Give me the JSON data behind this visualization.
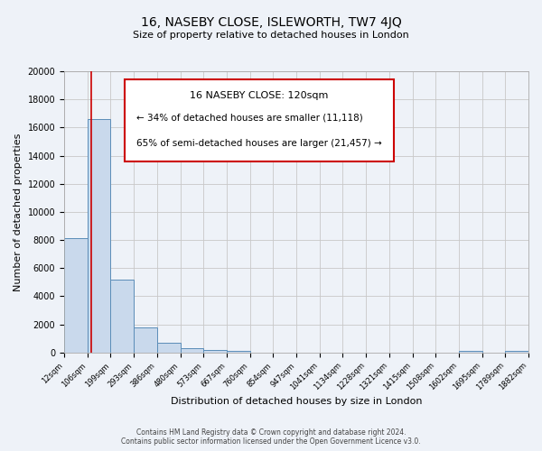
{
  "title": "16, NASEBY CLOSE, ISLEWORTH, TW7 4JQ",
  "subtitle": "Size of property relative to detached houses in London",
  "xlabel": "Distribution of detached houses by size in London",
  "ylabel": "Number of detached properties",
  "bar_edges": [
    12,
    106,
    199,
    293,
    386,
    480,
    573,
    667,
    760,
    854,
    947,
    1041,
    1134,
    1228,
    1321,
    1415,
    1508,
    1602,
    1695,
    1789,
    1882
  ],
  "bar_heights": [
    8100,
    16600,
    5200,
    1750,
    700,
    280,
    170,
    100,
    0,
    0,
    0,
    0,
    0,
    0,
    0,
    0,
    0,
    140,
    0,
    100
  ],
  "bar_color": "#c9d9ec",
  "bar_edge_color": "#5b8db8",
  "property_line_x": 120,
  "property_line_color": "#cc0000",
  "annotation_box_title": "16 NASEBY CLOSE: 120sqm",
  "annotation_line1": "← 34% of detached houses are smaller (11,118)",
  "annotation_line2": "65% of semi-detached houses are larger (21,457) →",
  "ylim": [
    0,
    20000
  ],
  "yticks": [
    0,
    2000,
    4000,
    6000,
    8000,
    10000,
    12000,
    14000,
    16000,
    18000,
    20000
  ],
  "tick_labels": [
    "12sqm",
    "106sqm",
    "199sqm",
    "293sqm",
    "386sqm",
    "480sqm",
    "573sqm",
    "667sqm",
    "760sqm",
    "854sqm",
    "947sqm",
    "1041sqm",
    "1134sqm",
    "1228sqm",
    "1321sqm",
    "1415sqm",
    "1508sqm",
    "1602sqm",
    "1695sqm",
    "1789sqm",
    "1882sqm"
  ],
  "footer1": "Contains HM Land Registry data © Crown copyright and database right 2024.",
  "footer2": "Contains public sector information licensed under the Open Government Licence v3.0.",
  "bg_color": "#eef2f8",
  "plot_bg_color": "#eef2f8",
  "grid_color": "#c8c8c8"
}
